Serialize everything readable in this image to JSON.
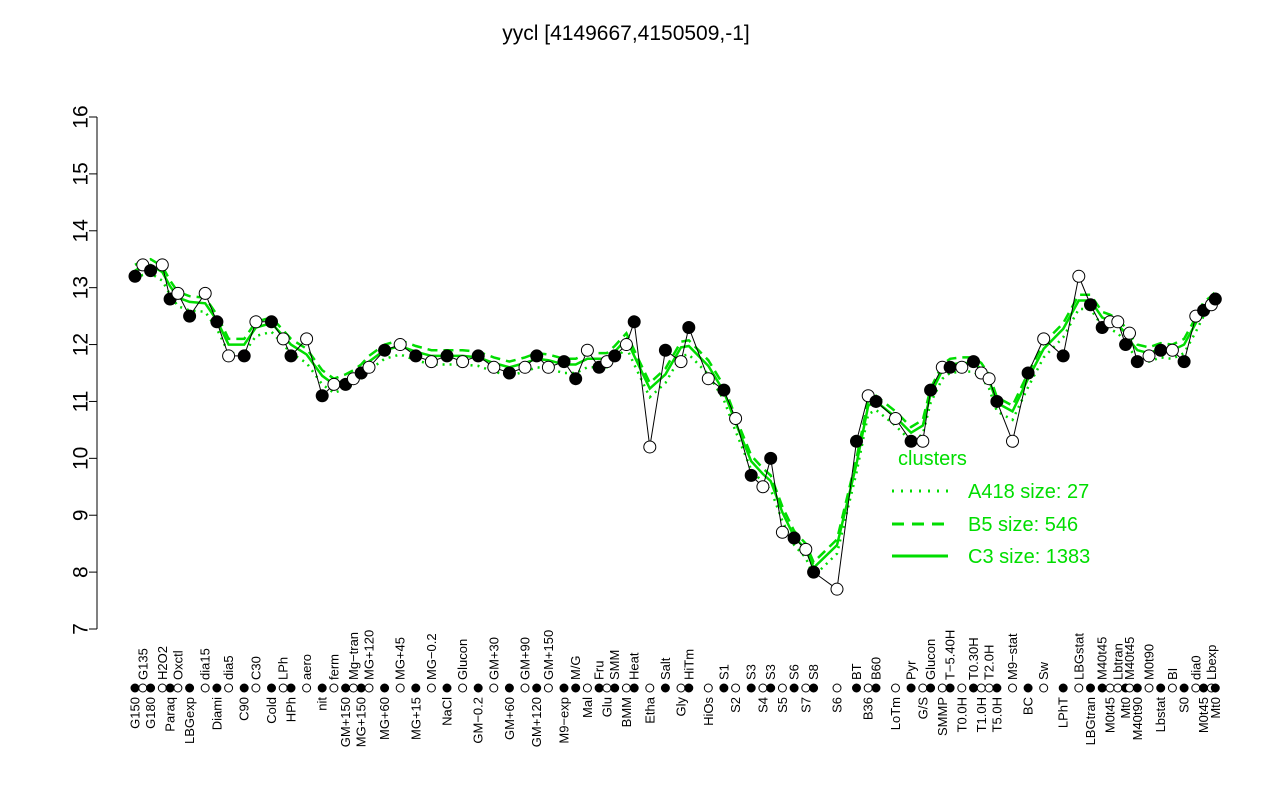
{
  "chart_data": {
    "type": "scatter",
    "title": "yycl [4149667,4150509,-1]",
    "xlabel": "",
    "ylabel": "",
    "ylim": [
      7,
      16
    ],
    "yticks": [
      7,
      8,
      9,
      10,
      11,
      12,
      13,
      14,
      15,
      16
    ],
    "grid": false,
    "legend": {
      "title": "clusters",
      "placement": "right",
      "entries": [
        {
          "name": "A418 size: 27",
          "style": "dotted"
        },
        {
          "name": "B5 size: 546",
          "style": "dashed"
        },
        {
          "name": "C3 size: 1383",
          "style": "solid"
        }
      ]
    },
    "colors": {
      "cluster_lines": "#00dd00",
      "points": "#000000"
    },
    "points": [
      {
        "label": "G150",
        "x": 1,
        "y": 13.2,
        "filled": true
      },
      {
        "label": "G135",
        "x": 3,
        "y": 13.4,
        "filled": false
      },
      {
        "label": "G180",
        "x": 5,
        "y": 13.3,
        "filled": true
      },
      {
        "label": "H2O2",
        "x": 8,
        "y": 13.4,
        "filled": false
      },
      {
        "label": "Paraq",
        "x": 10,
        "y": 12.8,
        "filled": true
      },
      {
        "label": "Oxctl",
        "x": 12,
        "y": 12.9,
        "filled": false
      },
      {
        "label": "LBGexp",
        "x": 15,
        "y": 12.5,
        "filled": true
      },
      {
        "label": "dia15",
        "x": 19,
        "y": 12.9,
        "filled": false
      },
      {
        "label": "Diami",
        "x": 22,
        "y": 12.4,
        "filled": true
      },
      {
        "label": "dia5",
        "x": 25,
        "y": 11.8,
        "filled": false
      },
      {
        "label": "C90",
        "x": 29,
        "y": 11.8,
        "filled": true
      },
      {
        "label": "C30",
        "x": 32,
        "y": 12.4,
        "filled": false
      },
      {
        "label": "Cold",
        "x": 36,
        "y": 12.4,
        "filled": true
      },
      {
        "label": "LPh",
        "x": 39,
        "y": 12.1,
        "filled": false
      },
      {
        "label": "HPh",
        "x": 41,
        "y": 11.8,
        "filled": true
      },
      {
        "label": "aero",
        "x": 45,
        "y": 12.1,
        "filled": false
      },
      {
        "label": "nit",
        "x": 49,
        "y": 11.1,
        "filled": true
      },
      {
        "label": "ferm",
        "x": 52,
        "y": 11.3,
        "filled": false
      },
      {
        "label": "GM+150",
        "x": 55,
        "y": 11.3,
        "filled": true
      },
      {
        "label": "Mg−tran",
        "x": 57,
        "y": 11.4,
        "filled": false
      },
      {
        "label": "MG+150",
        "x": 59,
        "y": 11.5,
        "filled": true
      },
      {
        "label": "MG+120",
        "x": 61,
        "y": 11.6,
        "filled": false
      },
      {
        "label": "MG+60",
        "x": 65,
        "y": 11.9,
        "filled": true
      },
      {
        "label": "MG+45",
        "x": 69,
        "y": 12.0,
        "filled": false
      },
      {
        "label": "MG+15",
        "x": 73,
        "y": 11.8,
        "filled": true
      },
      {
        "label": "MG−0.2",
        "x": 77,
        "y": 11.7,
        "filled": false
      },
      {
        "label": "NaCl",
        "x": 81,
        "y": 11.8,
        "filled": true
      },
      {
        "label": "Glucon",
        "x": 85,
        "y": 11.7,
        "filled": false
      },
      {
        "label": "GM−0.2",
        "x": 89,
        "y": 11.8,
        "filled": true
      },
      {
        "label": "GM+30",
        "x": 93,
        "y": 11.6,
        "filled": false
      },
      {
        "label": "GM+60",
        "x": 97,
        "y": 11.5,
        "filled": true
      },
      {
        "label": "GM+90",
        "x": 101,
        "y": 11.6,
        "filled": false
      },
      {
        "label": "GM+120",
        "x": 104,
        "y": 11.8,
        "filled": true
      },
      {
        "label": "GM+150",
        "x": 107,
        "y": 11.6,
        "filled": false
      },
      {
        "label": "M9−exp",
        "x": 111,
        "y": 11.7,
        "filled": true
      },
      {
        "label": "M/G",
        "x": 114,
        "y": 11.4,
        "filled": true
      },
      {
        "label": "Mal",
        "x": 117,
        "y": 11.9,
        "filled": false
      },
      {
        "label": "Fru",
        "x": 120,
        "y": 11.6,
        "filled": true
      },
      {
        "label": "Glu",
        "x": 122,
        "y": 11.7,
        "filled": false
      },
      {
        "label": "SMM",
        "x": 124,
        "y": 11.8,
        "filled": true
      },
      {
        "label": "BMM",
        "x": 127,
        "y": 12.0,
        "filled": false
      },
      {
        "label": "Heat",
        "x": 129,
        "y": 12.4,
        "filled": true
      },
      {
        "label": "Etha",
        "x": 133,
        "y": 10.2,
        "filled": false
      },
      {
        "label": "Salt",
        "x": 137,
        "y": 11.9,
        "filled": true
      },
      {
        "label": "Gly",
        "x": 141,
        "y": 11.7,
        "filled": false
      },
      {
        "label": "HiTm",
        "x": 143,
        "y": 12.3,
        "filled": true
      },
      {
        "label": "HiOs",
        "x": 148,
        "y": 11.4,
        "filled": false
      },
      {
        "label": "S1",
        "x": 152,
        "y": 11.2,
        "filled": true
      },
      {
        "label": "S2",
        "x": 155,
        "y": 10.7,
        "filled": false
      },
      {
        "label": "S3",
        "x": 159,
        "y": 9.7,
        "filled": true
      },
      {
        "label": "S4",
        "x": 162,
        "y": 9.5,
        "filled": false
      },
      {
        "label": "S3",
        "x": 164,
        "y": 10.0,
        "filled": true
      },
      {
        "label": "S5",
        "x": 167,
        "y": 8.7,
        "filled": false
      },
      {
        "label": "S6",
        "x": 170,
        "y": 8.6,
        "filled": true
      },
      {
        "label": "S7",
        "x": 173,
        "y": 8.4,
        "filled": false
      },
      {
        "label": "S8",
        "x": 175,
        "y": 8.0,
        "filled": true
      },
      {
        "label": "S6",
        "x": 181,
        "y": 7.7,
        "filled": false
      },
      {
        "label": "BT",
        "x": 186,
        "y": 10.3,
        "filled": true
      },
      {
        "label": "B36",
        "x": 189,
        "y": 11.1,
        "filled": false
      },
      {
        "label": "B60",
        "x": 191,
        "y": 11.0,
        "filled": true
      },
      {
        "label": "LoTm",
        "x": 196,
        "y": 10.7,
        "filled": false
      },
      {
        "label": "Pyr",
        "x": 200,
        "y": 10.3,
        "filled": true
      },
      {
        "label": "G/S",
        "x": 203,
        "y": 10.3,
        "filled": false
      },
      {
        "label": "Glucon",
        "x": 205,
        "y": 11.2,
        "filled": true
      },
      {
        "label": "SMMP",
        "x": 208,
        "y": 11.6,
        "filled": false
      },
      {
        "label": "T−5.40H",
        "x": 210,
        "y": 11.6,
        "filled": true
      },
      {
        "label": "T0.0H",
        "x": 213,
        "y": 11.6,
        "filled": false
      },
      {
        "label": "T0.30H",
        "x": 216,
        "y": 11.7,
        "filled": true
      },
      {
        "label": "T1.0H",
        "x": 218,
        "y": 11.5,
        "filled": false
      },
      {
        "label": "T2.0H",
        "x": 220,
        "y": 11.4,
        "filled": false
      },
      {
        "label": "T5.0H",
        "x": 222,
        "y": 11.0,
        "filled": true
      },
      {
        "label": "M9−stat",
        "x": 226,
        "y": 10.3,
        "filled": false
      },
      {
        "label": "BC",
        "x": 230,
        "y": 11.5,
        "filled": true
      },
      {
        "label": "Sw",
        "x": 234,
        "y": 12.1,
        "filled": false
      },
      {
        "label": "LPhT",
        "x": 239,
        "y": 11.8,
        "filled": true
      },
      {
        "label": "LBGstat",
        "x": 243,
        "y": 13.2,
        "filled": false
      },
      {
        "label": "LBGtran",
        "x": 246,
        "y": 12.7,
        "filled": true
      },
      {
        "label": "M40t45",
        "x": 249,
        "y": 12.3,
        "filled": true
      },
      {
        "label": "M0t45",
        "x": 251,
        "y": 12.4,
        "filled": false
      },
      {
        "label": "Lbtran",
        "x": 253,
        "y": 12.4,
        "filled": false
      },
      {
        "label": "Mt0",
        "x": 255,
        "y": 12.0,
        "filled": true
      },
      {
        "label": "M40t45",
        "x": 256,
        "y": 12.2,
        "filled": false
      },
      {
        "label": "M40t90",
        "x": 258,
        "y": 11.7,
        "filled": true
      },
      {
        "label": "M0t90",
        "x": 261,
        "y": 11.8,
        "filled": false
      },
      {
        "label": "Lbstat",
        "x": 264,
        "y": 11.9,
        "filled": true
      },
      {
        "label": "BI",
        "x": 267,
        "y": 11.9,
        "filled": false
      },
      {
        "label": "S0",
        "x": 270,
        "y": 11.7,
        "filled": true
      },
      {
        "label": "dia0",
        "x": 273,
        "y": 12.5,
        "filled": false
      },
      {
        "label": "M0t45",
        "x": 275,
        "y": 12.6,
        "filled": true
      },
      {
        "label": "Lbexp",
        "x": 277,
        "y": 12.7,
        "filled": false
      },
      {
        "label": "Mt0",
        "x": 278,
        "y": 12.8,
        "filled": true
      }
    ]
  }
}
